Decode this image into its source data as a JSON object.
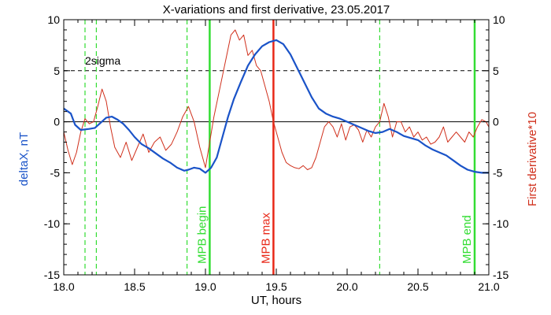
{
  "chart_data": {
    "type": "line",
    "title": "X-variations and first derivative, 23.05.2017",
    "xlabel": "UT, hours",
    "ylabel_left": "deltaX, nT",
    "ylabel_right": "First derivative*10",
    "xlim": [
      18.0,
      21.0
    ],
    "ylim": [
      -15,
      10
    ],
    "y2lim": [
      -15,
      10
    ],
    "x_ticks": [
      "18.0",
      "18.5",
      "19.0",
      "19.5",
      "20.0",
      "20.5",
      "21.0"
    ],
    "y_ticks": [
      "-15",
      "-10",
      "-5",
      "0",
      "5",
      "10"
    ],
    "y2_ticks": [
      "-15",
      "-10",
      "-5",
      "0",
      "5",
      "10"
    ],
    "grid": false,
    "colors": {
      "deltaX": "#1a53c8",
      "derivative": "#d0301c",
      "mpb": "#33dd33",
      "max": "#e82818"
    },
    "threshold": {
      "y": 5,
      "label": "2sigma",
      "style": "dashed"
    },
    "zero_line": 0,
    "series": [
      {
        "axis": "left",
        "x": [
          18.0,
          18.05,
          18.08,
          18.12,
          18.18,
          18.22,
          18.26,
          18.3,
          18.34,
          18.38,
          18.42,
          18.46,
          18.5,
          18.55,
          18.6,
          18.65,
          18.7,
          18.75,
          18.8,
          18.85,
          18.88,
          18.92,
          18.96,
          19.0,
          19.04,
          19.08,
          19.12,
          19.16,
          19.2,
          19.25,
          19.3,
          19.35,
          19.4,
          19.45,
          19.5,
          19.55,
          19.6,
          19.65,
          19.7,
          19.75,
          19.8,
          19.85,
          19.9,
          19.95,
          20.0,
          20.05,
          20.1,
          20.15,
          20.2,
          20.25,
          20.3,
          20.35,
          20.4,
          20.45,
          20.5,
          20.55,
          20.6,
          20.65,
          20.7,
          20.75,
          20.8,
          20.85,
          20.9,
          20.95,
          21.0
        ],
        "values": [
          1.3,
          0.8,
          -0.3,
          -0.8,
          -0.7,
          -0.6,
          -0.1,
          0.4,
          0.5,
          0.2,
          -0.2,
          -0.8,
          -1.5,
          -2.2,
          -2.6,
          -3.1,
          -3.6,
          -4.0,
          -4.5,
          -4.8,
          -4.7,
          -4.5,
          -4.6,
          -5.0,
          -4.5,
          -3.5,
          -1.5,
          0.5,
          2.2,
          3.9,
          5.5,
          6.6,
          7.4,
          7.8,
          8.0,
          7.6,
          6.6,
          5.2,
          3.8,
          2.4,
          1.3,
          0.8,
          0.5,
          0.3,
          0.0,
          -0.3,
          -0.6,
          -0.9,
          -1.1,
          -1.0,
          -0.7,
          -1.0,
          -1.4,
          -1.6,
          -1.8,
          -2.3,
          -2.7,
          -3.0,
          -3.3,
          -3.8,
          -4.3,
          -4.7,
          -4.9,
          -5.0,
          -5.0
        ]
      },
      {
        "axis": "right",
        "x": [
          18.0,
          18.03,
          18.06,
          18.09,
          18.12,
          18.15,
          18.18,
          18.21,
          18.24,
          18.27,
          18.3,
          18.33,
          18.36,
          18.4,
          18.44,
          18.48,
          18.52,
          18.56,
          18.6,
          18.64,
          18.68,
          18.72,
          18.76,
          18.8,
          18.84,
          18.88,
          18.92,
          18.96,
          19.0,
          19.03,
          19.06,
          19.09,
          19.12,
          19.15,
          19.18,
          19.21,
          19.24,
          19.27,
          19.3,
          19.33,
          19.36,
          19.39,
          19.42,
          19.45,
          19.48,
          19.51,
          19.54,
          19.57,
          19.6,
          19.63,
          19.66,
          19.69,
          19.72,
          19.75,
          19.78,
          19.81,
          19.84,
          19.87,
          19.9,
          19.93,
          19.96,
          19.99,
          20.02,
          20.05,
          20.08,
          20.11,
          20.14,
          20.17,
          20.2,
          20.23,
          20.26,
          20.29,
          20.32,
          20.35,
          20.38,
          20.41,
          20.44,
          20.47,
          20.5,
          20.53,
          20.56,
          20.59,
          20.62,
          20.65,
          20.68,
          20.71,
          20.74,
          20.77,
          20.8,
          20.83,
          20.86,
          20.89,
          20.92,
          20.95,
          20.98,
          21.0
        ],
        "values": [
          -1.0,
          -2.8,
          -4.2,
          -3.0,
          -1.0,
          0.3,
          -0.2,
          0.0,
          1.5,
          3.2,
          2.0,
          -0.5,
          -2.5,
          -3.5,
          -2.0,
          -3.8,
          -2.5,
          -1.2,
          -3.0,
          -2.0,
          -1.5,
          -2.8,
          -2.2,
          -1.0,
          0.5,
          1.5,
          0.0,
          -2.5,
          -4.5,
          -2.0,
          0.5,
          2.5,
          4.5,
          6.5,
          8.5,
          9.0,
          8.0,
          8.5,
          6.5,
          7.0,
          5.5,
          5.0,
          3.5,
          2.0,
          0.0,
          -1.5,
          -3.0,
          -4.0,
          -4.3,
          -4.5,
          -4.6,
          -4.3,
          -4.7,
          -4.5,
          -3.5,
          -2.0,
          -0.5,
          0.0,
          -0.5,
          -1.5,
          -0.2,
          -1.8,
          -0.5,
          -0.3,
          -0.8,
          -2.0,
          -0.8,
          -1.5,
          -0.5,
          0.0,
          1.8,
          0.5,
          -1.5,
          0.0,
          0.0,
          -1.0,
          -0.5,
          -1.5,
          -1.0,
          -1.8,
          -1.5,
          -2.2,
          -2.0,
          -1.5,
          -0.5,
          -2.0,
          -1.5,
          -1.0,
          -1.5,
          -2.0,
          -1.0,
          -1.5,
          -0.5,
          0.2,
          0.0,
          -0.5
        ]
      }
    ],
    "vlines": [
      {
        "x": 18.15,
        "style": "dashed",
        "label": ""
      },
      {
        "x": 18.23,
        "style": "dashed",
        "label": ""
      },
      {
        "x": 18.87,
        "style": "dashed",
        "label": ""
      },
      {
        "x": 19.03,
        "style": "solid",
        "label": "MPB begin"
      },
      {
        "x": 19.48,
        "style": "solid",
        "label": "MPB max"
      },
      {
        "x": 20.23,
        "style": "dashed",
        "label": ""
      },
      {
        "x": 20.9,
        "style": "solid",
        "label": "MPB end"
      }
    ]
  }
}
